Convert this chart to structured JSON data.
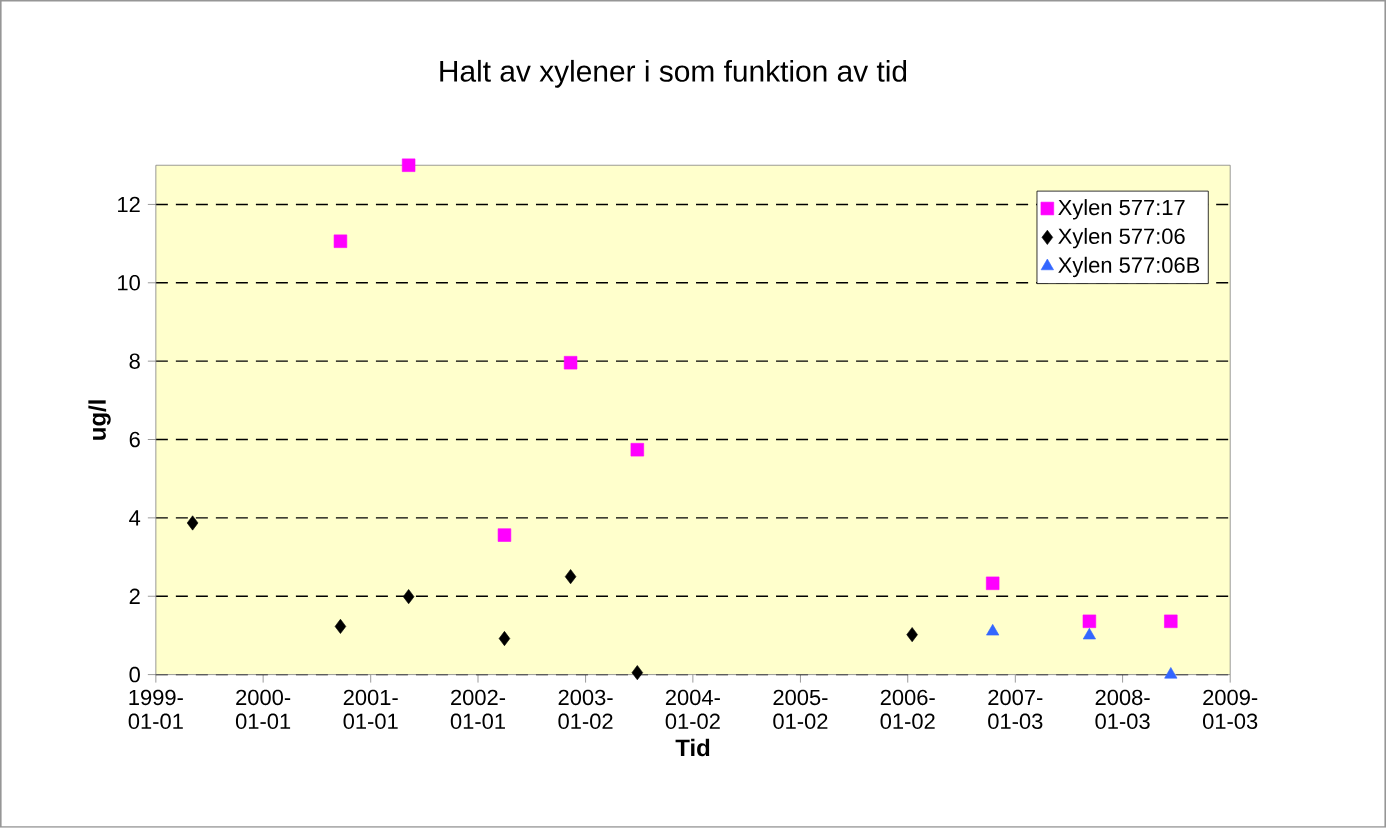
{
  "chart_data": {
    "type": "scatter",
    "title": "Halt av xylener i som funktion av tid",
    "xlabel": "Tid",
    "ylabel": "ug/l",
    "xlim": [
      "1999-01-01",
      "2009-01-03"
    ],
    "xticks": [
      {
        "value": "1999-01-01",
        "label": "1999-01-01"
      },
      {
        "value": "2000-01-01",
        "label": "2000-01-01"
      },
      {
        "value": "2001-01-01",
        "label": "2001-01-01"
      },
      {
        "value": "2002-01-01",
        "label": "2002-01-01"
      },
      {
        "value": "2003-01-02",
        "label": "2003-01-02"
      },
      {
        "value": "2004-01-02",
        "label": "2004-01-02"
      },
      {
        "value": "2005-01-02",
        "label": "2005-01-02"
      },
      {
        "value": "2006-01-02",
        "label": "2006-01-02"
      },
      {
        "value": "2007-01-03",
        "label": "2007-01-03"
      },
      {
        "value": "2008-01-03",
        "label": "2008-01-03"
      },
      {
        "value": "2009-01-03",
        "label": "2009-01-03"
      }
    ],
    "ylim": [
      0,
      13
    ],
    "yticks": [
      0,
      2,
      4,
      6,
      8,
      10,
      12
    ],
    "grid": "y",
    "legend": "top right",
    "series": [
      {
        "name": "Xylen 577:17",
        "color": "#ff00ff",
        "marker": "square",
        "x": [
          "2000-09-20",
          "2001-05-10",
          "2002-04-01",
          "2002-11-12",
          "2003-06-27",
          "2006-10-18",
          "2007-09-12",
          "2008-06-15"
        ],
        "values": [
          11.06,
          13.0,
          3.56,
          7.96,
          5.74,
          2.33,
          1.36,
          1.36
        ]
      },
      {
        "name": "Xylen 577:06",
        "color": "#000000",
        "marker": "diamond",
        "x": [
          "1999-05-06",
          "2000-09-20",
          "2001-05-10",
          "2002-04-01",
          "2002-11-12",
          "2003-06-27",
          "2006-01-17"
        ],
        "values": [
          3.87,
          1.23,
          1.99,
          0.92,
          2.5,
          0.05,
          1.02
        ]
      },
      {
        "name": "Xylen 577:06B",
        "color": "#3366ff",
        "marker": "triangle",
        "x": [
          "2006-10-18",
          "2007-09-12",
          "2008-06-15"
        ],
        "values": [
          1.1,
          1.0,
          0.0
        ]
      }
    ]
  }
}
